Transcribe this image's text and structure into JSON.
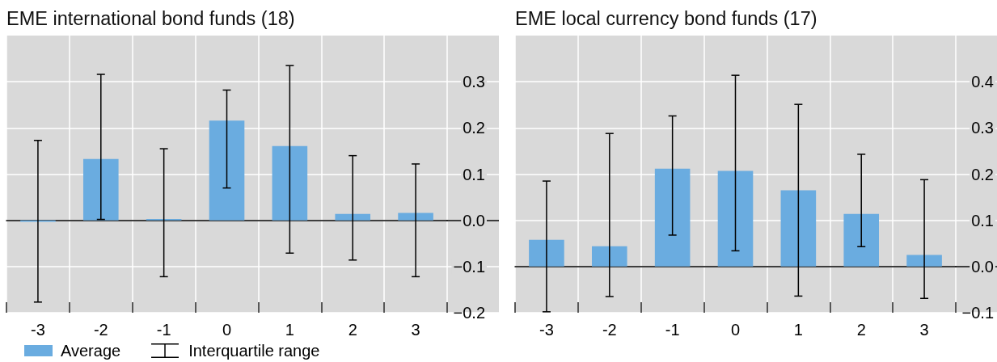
{
  "chart_data": [
    {
      "type": "bar",
      "title": "EME international bond funds (18)",
      "categories": [
        "-3",
        "-2",
        "-1",
        "0",
        "1",
        "2",
        "3"
      ],
      "series": [
        {
          "name": "Average",
          "color": "#6aace0",
          "values": [
            -0.003,
            0.133,
            0.003,
            0.216,
            0.161,
            0.014,
            0.016
          ],
          "errors": [
            [
              -0.177,
              0.173
            ],
            [
              0.002,
              0.316
            ],
            [
              -0.122,
              0.155
            ],
            [
              0.07,
              0.282
            ],
            [
              -0.071,
              0.335
            ],
            [
              -0.086,
              0.14
            ],
            [
              -0.122,
              0.122
            ]
          ]
        }
      ],
      "ylim": [
        -0.2,
        0.4
      ],
      "yticks": [
        {
          "value": -0.2,
          "label": "−0.2"
        },
        {
          "value": -0.1,
          "label": "−0.1"
        },
        {
          "value": 0,
          "label": "0.0"
        },
        0.1,
        0.2,
        0.3
      ],
      "grid": true,
      "legend": "bottom left",
      "annotations": [
        "Interquartile range"
      ]
    },
    {
      "type": "bar",
      "title": "EME local currency bond funds (17)",
      "categories": [
        "-3",
        "-2",
        "-1",
        "0",
        "1",
        "2",
        "3"
      ],
      "series": [
        {
          "color": "#6aace0",
          "values": [
            0.058,
            0.044,
            0.212,
            0.207,
            0.165,
            0.114,
            0.025
          ],
          "errors": [
            [
              -0.098,
              0.185
            ],
            [
              -0.065,
              0.288
            ],
            [
              0.068,
              0.326
            ],
            [
              0.034,
              0.414
            ],
            [
              -0.064,
              0.351
            ],
            [
              0.043,
              0.243
            ],
            [
              -0.069,
              0.188
            ]
          ]
        }
      ],
      "ylim": [
        -0.1,
        0.5
      ],
      "yticks": [
        {
          "value": -0.1,
          "label": "−0.1"
        },
        {
          "value": 0,
          "label": "0.0"
        },
        0.1,
        0.2,
        0.3,
        0.4
      ],
      "grid": true
    }
  ]
}
